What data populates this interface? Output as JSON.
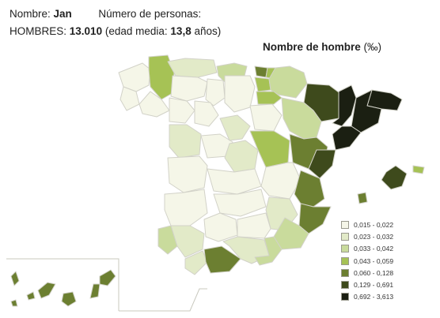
{
  "header": {
    "nombre_label": "Nombre:",
    "nombre_value": "Jan",
    "personas_label": "Número de personas:",
    "hombres_label": "HOMBRES:",
    "hombres_value": "13.010",
    "edad_label": "(edad media:",
    "edad_value": "13,8",
    "edad_unit": "años)"
  },
  "map": {
    "title": "Nombre de hombre",
    "unit": "(‰)"
  },
  "legend": [
    {
      "label": "0,015 - 0,022",
      "color": "#f5f6e8"
    },
    {
      "label": "0,023 - 0,032",
      "color": "#e2eac8"
    },
    {
      "label": "0,033 - 0,042",
      "color": "#c9db9c"
    },
    {
      "label": "0,043 - 0,059",
      "color": "#a6c255"
    },
    {
      "label": "0,060 - 0,128",
      "color": "#6c7f31"
    },
    {
      "label": "0,129 - 0,691",
      "color": "#3e4a1c"
    },
    {
      "label": "0,692 - 3,613",
      "color": "#1b1f12"
    }
  ],
  "colors": {
    "border": "#d2d2c8",
    "outline": "#a8a89c",
    "background": "#ffffff"
  }
}
